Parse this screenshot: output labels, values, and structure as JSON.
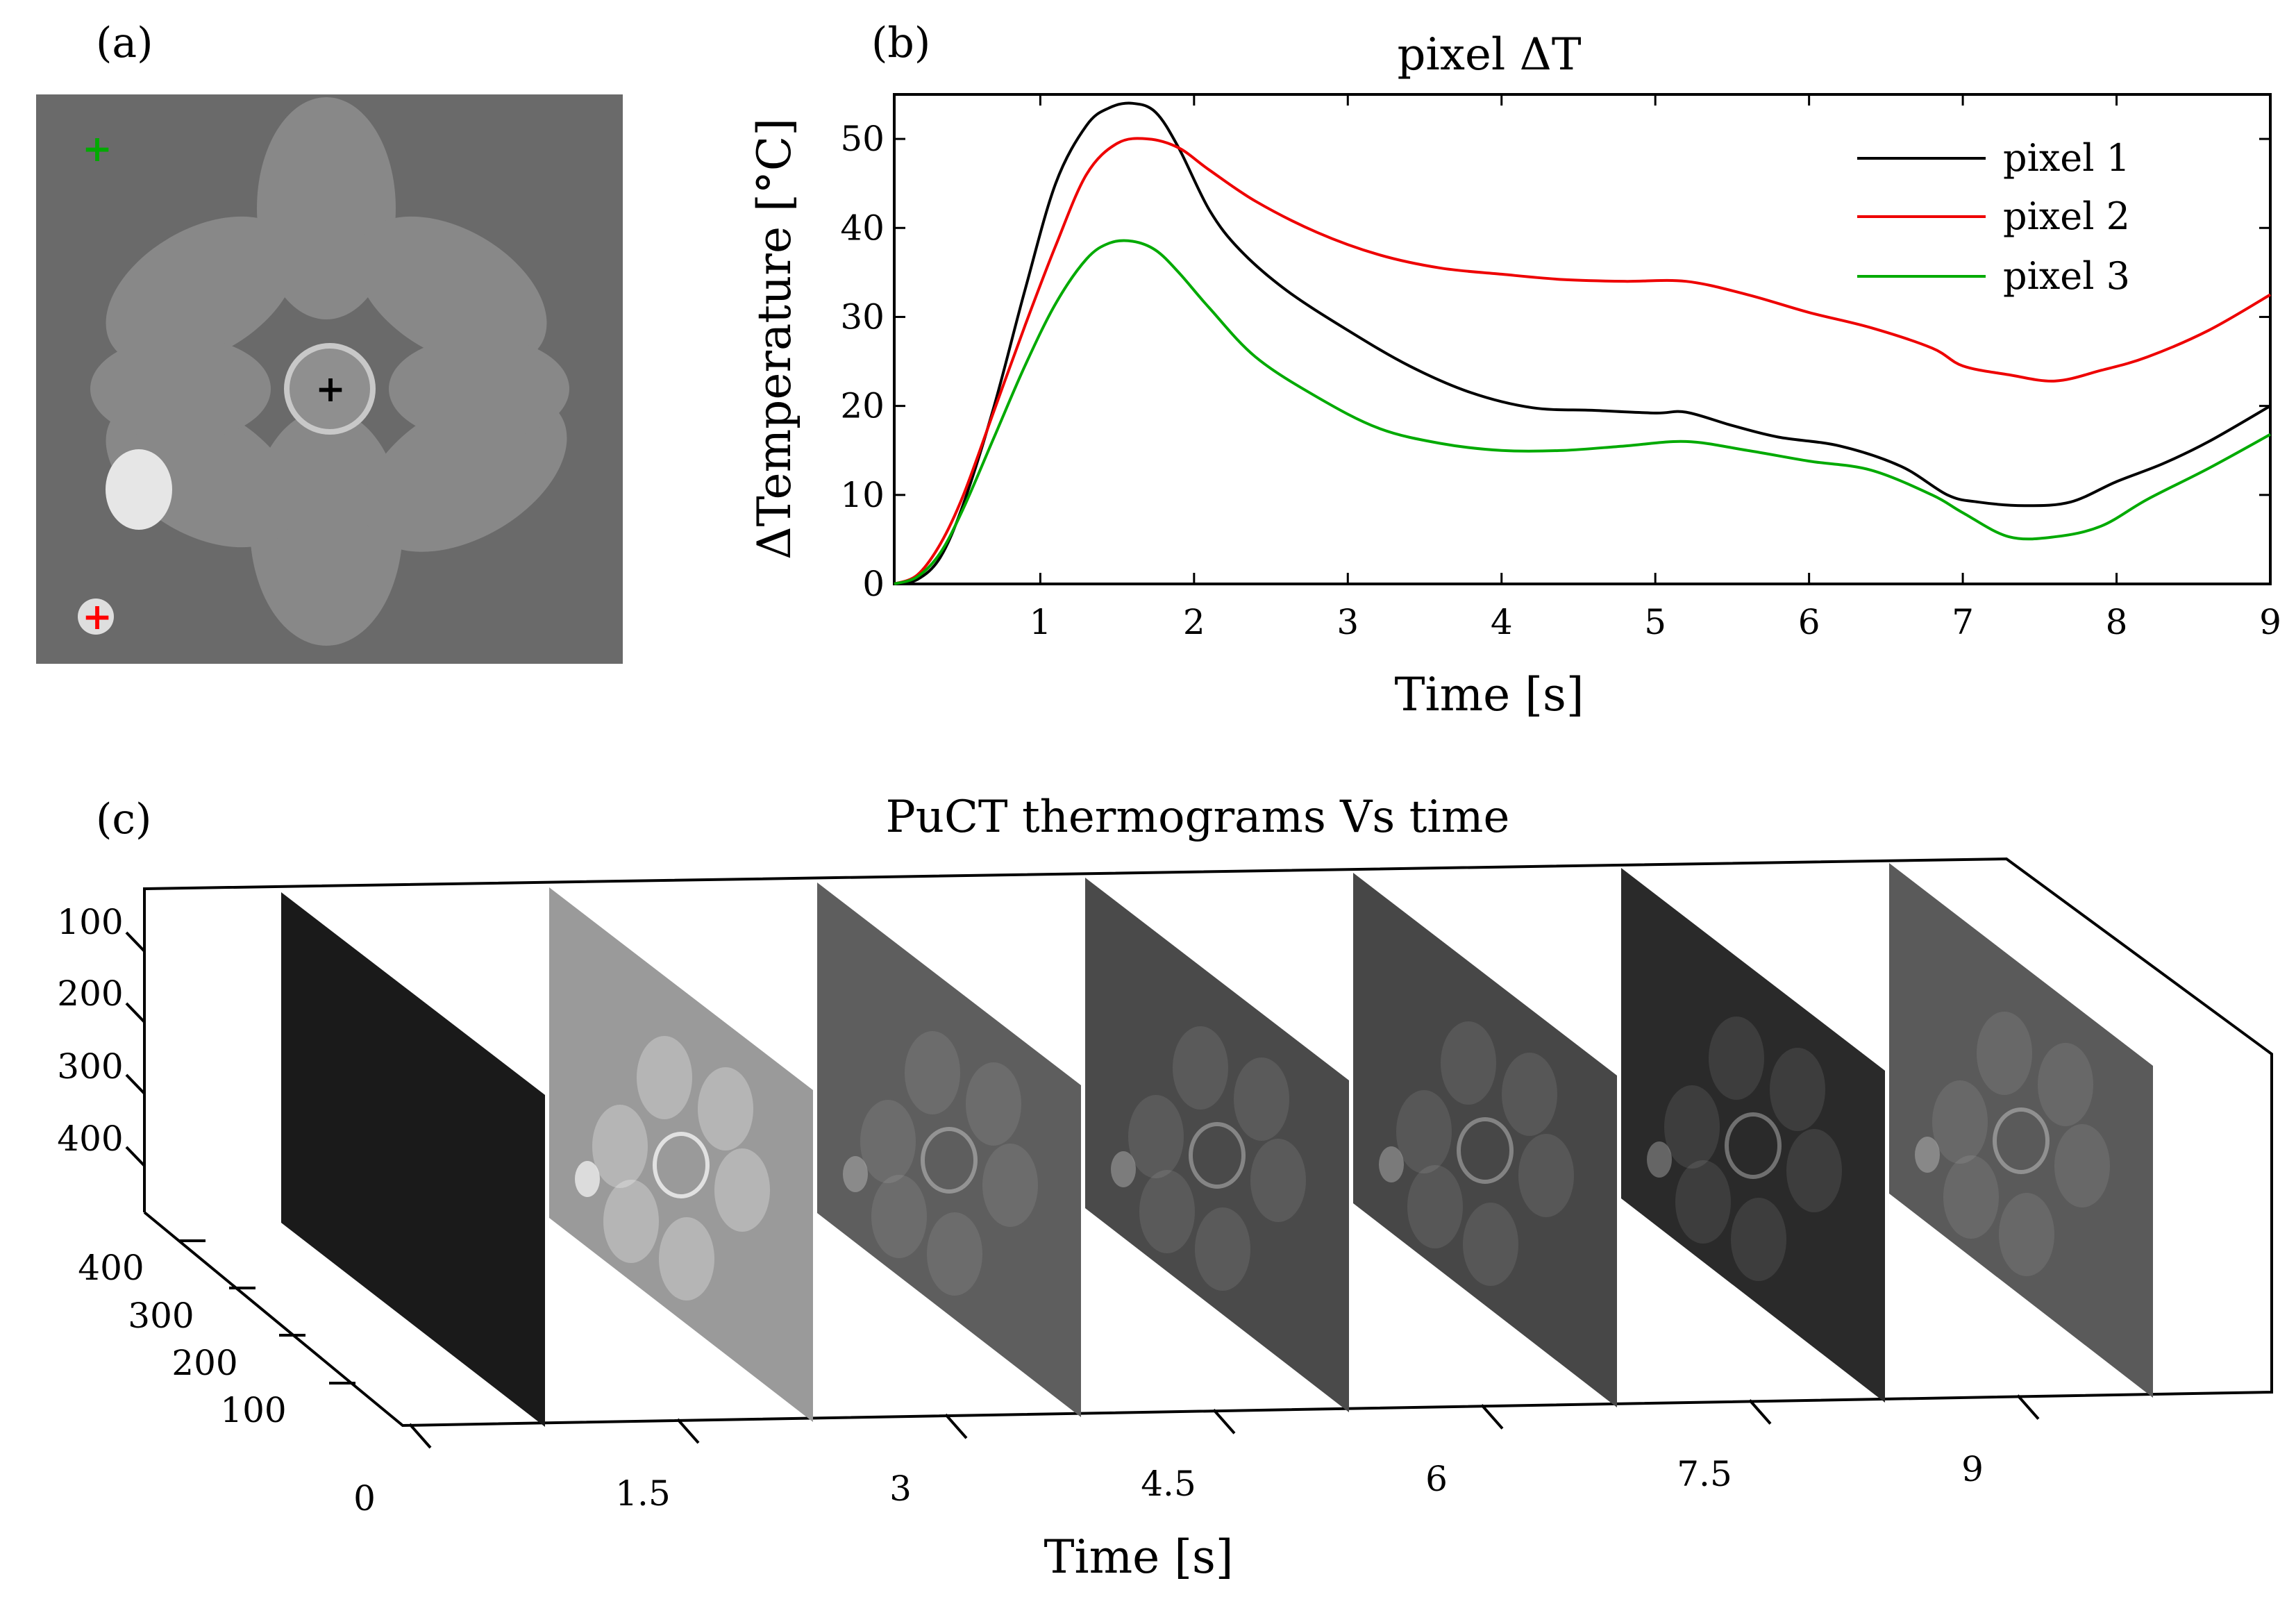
{
  "panel_labels": {
    "a": "(a)",
    "b": "(b)",
    "c": "(c)"
  },
  "chart_data": [
    {
      "panel": "a",
      "type": "image",
      "description_markers": [
        {
          "name": "pixel 1",
          "color": "#000000",
          "symbol": "+"
        },
        {
          "name": "pixel 2",
          "color": "#ff0000",
          "symbol": "+"
        },
        {
          "name": "pixel 3",
          "color": "#00a000",
          "symbol": "+"
        }
      ]
    },
    {
      "panel": "b",
      "type": "line",
      "title": "pixel ΔT",
      "xlabel": "Time [s]",
      "ylabel": "ΔTemperature [°C]",
      "xlim": [
        0.05,
        9
      ],
      "ylim": [
        0,
        55
      ],
      "xticks": [
        1,
        2,
        3,
        4,
        5,
        6,
        7,
        8,
        9
      ],
      "yticks": [
        0,
        10,
        20,
        30,
        40,
        50
      ],
      "legend_position": "top-right",
      "series": [
        {
          "name": "pixel 1",
          "color": "#000000",
          "x": [
            0.05,
            0.2,
            0.35,
            0.5,
            0.7,
            0.9,
            1.1,
            1.3,
            1.45,
            1.6,
            1.75,
            1.9,
            2.1,
            2.3,
            2.6,
            3.0,
            3.4,
            3.8,
            4.2,
            4.6,
            5.0,
            5.2,
            5.5,
            5.8,
            6.2,
            6.6,
            6.9,
            7.1,
            7.4,
            7.7,
            8.0,
            8.3,
            8.6,
            9.0
          ],
          "y": [
            0,
            0.5,
            3,
            9,
            20,
            33,
            45,
            51.5,
            53.5,
            54,
            53,
            49,
            42,
            37.5,
            33,
            28.5,
            24.5,
            21.5,
            19.8,
            19.5,
            19.2,
            19.3,
            17.8,
            16.5,
            15.5,
            13.2,
            10,
            9.2,
            8.8,
            9.2,
            11.5,
            13.5,
            16,
            20
          ]
        },
        {
          "name": "pixel 2",
          "color": "#ee0000",
          "x": [
            0.05,
            0.2,
            0.35,
            0.5,
            0.7,
            0.9,
            1.1,
            1.3,
            1.5,
            1.7,
            1.9,
            2.1,
            2.4,
            2.8,
            3.2,
            3.6,
            4.0,
            4.4,
            4.8,
            5.2,
            5.6,
            6.0,
            6.4,
            6.8,
            7.0,
            7.3,
            7.6,
            7.9,
            8.2,
            8.6,
            9.0
          ],
          "y": [
            0,
            1,
            4.5,
            10,
            19.5,
            29,
            38,
            46,
            49.5,
            50,
            49,
            46.5,
            43,
            39.5,
            37,
            35.5,
            34.8,
            34.2,
            34,
            34,
            32.5,
            30.5,
            28.8,
            26.5,
            24.5,
            23.5,
            22.8,
            24,
            25.5,
            28.5,
            32.5
          ]
        },
        {
          "name": "pixel 3",
          "color": "#00aa00",
          "x": [
            0.05,
            0.2,
            0.35,
            0.5,
            0.7,
            0.9,
            1.1,
            1.3,
            1.45,
            1.6,
            1.75,
            1.9,
            2.1,
            2.4,
            2.8,
            3.2,
            3.6,
            4.0,
            4.4,
            4.8,
            5.2,
            5.6,
            6.0,
            6.4,
            6.8,
            7.0,
            7.3,
            7.6,
            7.9,
            8.2,
            8.6,
            9.0
          ],
          "y": [
            0,
            0.8,
            3.5,
            8.5,
            16.5,
            24.5,
            31.5,
            36.5,
            38.3,
            38.5,
            37.5,
            35,
            31,
            25.5,
            21,
            17.5,
            15.8,
            15,
            15,
            15.5,
            16,
            15,
            13.8,
            12.8,
            10,
            8,
            5.3,
            5.3,
            6.5,
            9.5,
            13,
            16.8
          ]
        }
      ]
    },
    {
      "panel": "c",
      "type": "3d-image-stack",
      "title": "PuCT thermograms Vs time",
      "xlabel": "Time [s]",
      "time_ticks": [
        "0",
        "1.5",
        "3",
        "4.5",
        "6",
        "7.5",
        "9"
      ],
      "y_ticks": [
        "100",
        "200",
        "300",
        "400"
      ],
      "depth_ticks": [
        "400",
        "300",
        "200",
        "100"
      ],
      "frames": [
        {
          "time": 0,
          "brightness": "#1a1a1a"
        },
        {
          "time": 1.5,
          "brightness": "#9a9a9a"
        },
        {
          "time": 3,
          "brightness": "#5e5e5e"
        },
        {
          "time": 4.5,
          "brightness": "#4a4a4a"
        },
        {
          "time": 6,
          "brightness": "#474747"
        },
        {
          "time": 7.5,
          "brightness": "#2a2a2a"
        },
        {
          "time": 9,
          "brightness": "#5a5a5a"
        }
      ]
    }
  ]
}
